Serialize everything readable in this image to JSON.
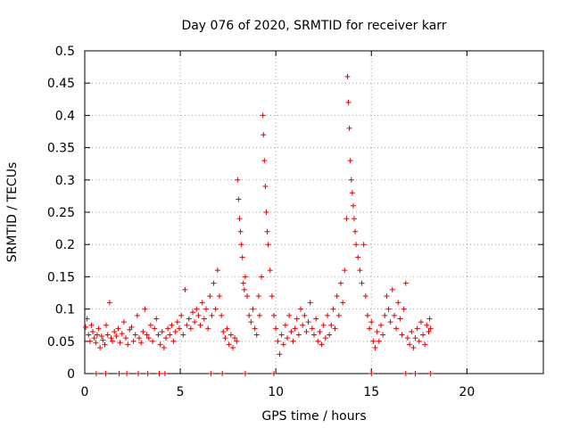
{
  "chart_data": {
    "type": "scatter",
    "title": "Day 076 of 2020, SRMTID for receiver karr",
    "xlabel": "GPS time / hours",
    "ylabel": "SRMTID / TECUs",
    "xlim": [
      0,
      24
    ],
    "ylim": [
      0,
      0.5
    ],
    "grid": true,
    "marker": "+",
    "x_ticks": [
      0,
      5,
      10,
      15,
      20
    ],
    "x_tick_labels": [
      "0",
      "5",
      "10",
      "15",
      "20"
    ],
    "y_ticks": [
      0,
      0.05,
      0.1,
      0.15,
      0.2,
      0.25,
      0.3,
      0.35,
      0.4,
      0.45,
      0.5
    ],
    "y_tick_labels": [
      "0",
      "0.05",
      "0.1",
      "0.15",
      "0.2",
      "0.25",
      "0.3",
      "0.35",
      "0.4",
      "0.45",
      "0.5"
    ],
    "series": [
      {
        "name": "SRMTID",
        "color": "#e00000",
        "points": [
          [
            0.05,
            0.072
          ],
          [
            0.12,
            0.085
          ],
          [
            0.2,
            0.06
          ],
          [
            0.28,
            0.05
          ],
          [
            0.35,
            0.075
          ],
          [
            0.42,
            0.065
          ],
          [
            0.5,
            0.055
          ],
          [
            0.58,
            0.048
          ],
          [
            0.65,
            0.06
          ],
          [
            0.72,
            0.07
          ],
          [
            0.8,
            0.04
          ],
          [
            0.88,
            0.058
          ],
          [
            0.95,
            0.052
          ],
          [
            1.05,
            0.045
          ],
          [
            1.12,
            0.075
          ],
          [
            1.2,
            0.06
          ],
          [
            1.3,
            0.11
          ],
          [
            1.38,
            0.055
          ],
          [
            1.45,
            0.05
          ],
          [
            1.55,
            0.065
          ],
          [
            1.65,
            0.058
          ],
          [
            1.75,
            0.07
          ],
          [
            1.85,
            0.048
          ],
          [
            1.95,
            0.062
          ],
          [
            2.05,
            0.08
          ],
          [
            2.15,
            0.055
          ],
          [
            2.25,
            0.045
          ],
          [
            2.35,
            0.068
          ],
          [
            2.45,
            0.072
          ],
          [
            2.55,
            0.05
          ],
          [
            2.65,
            0.06
          ],
          [
            2.75,
            0.09
          ],
          [
            2.85,
            0.055
          ],
          [
            2.95,
            0.048
          ],
          [
            3.05,
            0.065
          ],
          [
            3.15,
            0.1
          ],
          [
            3.25,
            0.06
          ],
          [
            3.35,
            0.055
          ],
          [
            3.45,
            0.075
          ],
          [
            3.55,
            0.05
          ],
          [
            3.65,
            0.07
          ],
          [
            3.75,
            0.085
          ],
          [
            3.85,
            0.06
          ],
          [
            3.95,
            0.045
          ],
          [
            4.05,
            0.065
          ],
          [
            4.15,
            0.04
          ],
          [
            4.25,
            0.055
          ],
          [
            4.35,
            0.07
          ],
          [
            4.45,
            0.06
          ],
          [
            4.55,
            0.075
          ],
          [
            4.65,
            0.05
          ],
          [
            4.75,
            0.065
          ],
          [
            4.85,
            0.08
          ],
          [
            4.95,
            0.07
          ],
          [
            5.05,
            0.09
          ],
          [
            5.15,
            0.06
          ],
          [
            5.25,
            0.13
          ],
          [
            5.35,
            0.075
          ],
          [
            5.45,
            0.085
          ],
          [
            5.55,
            0.07
          ],
          [
            5.65,
            0.095
          ],
          [
            5.75,
            0.08
          ],
          [
            5.85,
            0.1
          ],
          [
            5.95,
            0.09
          ],
          [
            6.05,
            0.075
          ],
          [
            6.15,
            0.11
          ],
          [
            6.25,
            0.085
          ],
          [
            6.35,
            0.1
          ],
          [
            6.45,
            0.07
          ],
          [
            6.55,
            0.12
          ],
          [
            6.65,
            0.09
          ],
          [
            6.75,
            0.14
          ],
          [
            6.85,
            0.1
          ],
          [
            6.95,
            0.16
          ],
          [
            7.05,
            0.12
          ],
          [
            7.15,
            0.09
          ],
          [
            7.25,
            0.065
          ],
          [
            7.35,
            0.055
          ],
          [
            7.45,
            0.07
          ],
          [
            7.55,
            0.045
          ],
          [
            7.65,
            0.06
          ],
          [
            7.75,
            0.04
          ],
          [
            7.85,
            0.055
          ],
          [
            7.95,
            0.05
          ],
          [
            8.0,
            0.3
          ],
          [
            8.05,
            0.27
          ],
          [
            8.1,
            0.24
          ],
          [
            8.15,
            0.22
          ],
          [
            8.2,
            0.2
          ],
          [
            8.25,
            0.18
          ],
          [
            8.3,
            0.14
          ],
          [
            8.35,
            0.13
          ],
          [
            8.4,
            0.15
          ],
          [
            8.5,
            0.12
          ],
          [
            8.6,
            0.09
          ],
          [
            8.7,
            0.08
          ],
          [
            8.8,
            0.1
          ],
          [
            8.9,
            0.07
          ],
          [
            9.0,
            0.06
          ],
          [
            9.1,
            0.12
          ],
          [
            9.15,
            0.09
          ],
          [
            9.25,
            0.15
          ],
          [
            9.32,
            0.4
          ],
          [
            9.35,
            0.37
          ],
          [
            9.4,
            0.33
          ],
          [
            9.45,
            0.29
          ],
          [
            9.5,
            0.25
          ],
          [
            9.55,
            0.22
          ],
          [
            9.6,
            0.2
          ],
          [
            9.7,
            0.16
          ],
          [
            9.8,
            0.12
          ],
          [
            9.9,
            0.09
          ],
          [
            10.0,
            0.07
          ],
          [
            10.1,
            0.05
          ],
          [
            10.2,
            0.03
          ],
          [
            10.3,
            0.06
          ],
          [
            10.4,
            0.045
          ],
          [
            10.5,
            0.075
          ],
          [
            10.6,
            0.055
          ],
          [
            10.7,
            0.09
          ],
          [
            10.8,
            0.065
          ],
          [
            10.9,
            0.05
          ],
          [
            11.0,
            0.07
          ],
          [
            11.1,
            0.085
          ],
          [
            11.2,
            0.06
          ],
          [
            11.3,
            0.1
          ],
          [
            11.4,
            0.075
          ],
          [
            11.5,
            0.09
          ],
          [
            11.6,
            0.065
          ],
          [
            11.7,
            0.08
          ],
          [
            11.8,
            0.11
          ],
          [
            11.9,
            0.07
          ],
          [
            12.0,
            0.06
          ],
          [
            12.1,
            0.085
          ],
          [
            12.2,
            0.05
          ],
          [
            12.3,
            0.065
          ],
          [
            12.4,
            0.045
          ],
          [
            12.5,
            0.075
          ],
          [
            12.6,
            0.055
          ],
          [
            12.7,
            0.09
          ],
          [
            12.8,
            0.06
          ],
          [
            12.9,
            0.075
          ],
          [
            13.0,
            0.1
          ],
          [
            13.1,
            0.07
          ],
          [
            13.2,
            0.12
          ],
          [
            13.3,
            0.09
          ],
          [
            13.4,
            0.14
          ],
          [
            13.5,
            0.11
          ],
          [
            13.6,
            0.16
          ],
          [
            13.7,
            0.24
          ],
          [
            13.75,
            0.46
          ],
          [
            13.8,
            0.42
          ],
          [
            13.85,
            0.38
          ],
          [
            13.9,
            0.33
          ],
          [
            13.95,
            0.3
          ],
          [
            14.0,
            0.28
          ],
          [
            14.05,
            0.26
          ],
          [
            14.1,
            0.24
          ],
          [
            14.15,
            0.22
          ],
          [
            14.2,
            0.2
          ],
          [
            14.3,
            0.18
          ],
          [
            14.4,
            0.16
          ],
          [
            14.5,
            0.14
          ],
          [
            14.6,
            0.2
          ],
          [
            14.7,
            0.12
          ],
          [
            14.8,
            0.09
          ],
          [
            14.9,
            0.07
          ],
          [
            15.0,
            0.08
          ],
          [
            15.1,
            0.05
          ],
          [
            15.2,
            0.04
          ],
          [
            15.3,
            0.065
          ],
          [
            15.4,
            0.05
          ],
          [
            15.5,
            0.075
          ],
          [
            15.6,
            0.06
          ],
          [
            15.7,
            0.09
          ],
          [
            15.8,
            0.12
          ],
          [
            15.9,
            0.1
          ],
          [
            16.0,
            0.08
          ],
          [
            16.1,
            0.13
          ],
          [
            16.2,
            0.09
          ],
          [
            16.3,
            0.07
          ],
          [
            16.4,
            0.11
          ],
          [
            16.5,
            0.085
          ],
          [
            16.6,
            0.06
          ],
          [
            16.7,
            0.1
          ],
          [
            16.8,
            0.14
          ],
          [
            16.9,
            0.055
          ],
          [
            17.0,
            0.045
          ],
          [
            17.1,
            0.065
          ],
          [
            17.2,
            0.04
          ],
          [
            17.3,
            0.055
          ],
          [
            17.4,
            0.07
          ],
          [
            17.5,
            0.05
          ],
          [
            17.6,
            0.08
          ],
          [
            17.7,
            0.06
          ],
          [
            17.8,
            0.045
          ],
          [
            17.9,
            0.075
          ],
          [
            18.0,
            0.065
          ],
          [
            18.05,
            0.085
          ],
          [
            18.1,
            0.07
          ]
        ]
      }
    ],
    "zero_markers_x": [
      0.6,
      1.1,
      1.8,
      2.2,
      2.8,
      3.3,
      3.9,
      4.2,
      6.6,
      7.2,
      8.4,
      9.9,
      15.0,
      16.8,
      17.3,
      18.1
    ]
  }
}
